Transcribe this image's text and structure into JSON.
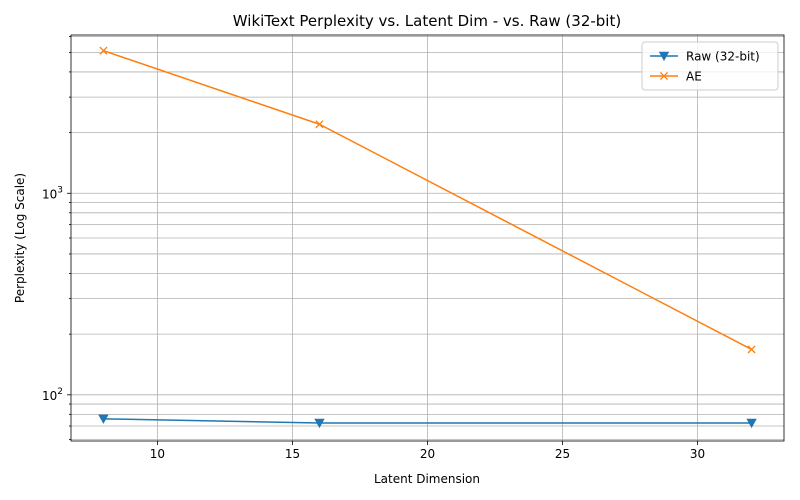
{
  "chart_data": {
    "type": "line",
    "title": "WikiText Perplexity vs. Latent Dim - vs. Raw (32-bit)",
    "xlabel": "Latent Dimension",
    "ylabel": "Perplexity (Log Scale)",
    "xlim": [
      6.8,
      33.2
    ],
    "ylim": [
      59,
      6100
    ],
    "yscale": "log",
    "grid": true,
    "legend_position": "top-right",
    "x_ticks": [
      10,
      15,
      20,
      25,
      30
    ],
    "x_tick_labels": [
      "10",
      "15",
      "20",
      "25",
      "30"
    ],
    "y_major_ticks": [
      100,
      1000
    ],
    "y_tick_labels": [
      {
        "base": "10",
        "exponent": "2"
      },
      {
        "base": "10",
        "exponent": "3"
      }
    ],
    "y_minor_ticks": [
      60,
      70,
      80,
      90,
      200,
      300,
      400,
      500,
      600,
      700,
      800,
      900,
      2000,
      3000,
      4000,
      5000,
      6000
    ],
    "series": [
      {
        "name": "Raw (32-bit)",
        "color": "#1f77b4",
        "marker": "triangle-down",
        "x": [
          8,
          16,
          32
        ],
        "y": [
          76,
          72.5,
          72.5
        ]
      },
      {
        "name": "AE",
        "color": "#ff7f0e",
        "marker": "x",
        "x": [
          8,
          16,
          32
        ],
        "y": [
          5100,
          2200,
          168
        ]
      }
    ]
  }
}
